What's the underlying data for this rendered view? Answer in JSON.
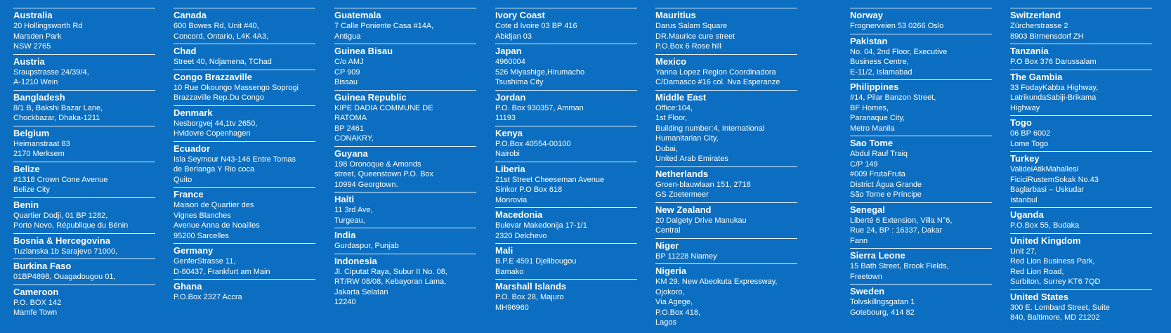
{
  "columns": [
    [
      {
        "name": "Australia",
        "lines": [
          "20 Hollingsworth Rd",
          "Marsden Park",
          "NSW 2765"
        ]
      },
      {
        "name": "Austria",
        "lines": [
          "Sraupstrasse 24/39/4,",
          "A-1210 Wein"
        ]
      },
      {
        "name": "Bangladesh",
        "lines": [
          "8/1 B, Bakshi Bazar Lane,",
          "Chockbazar, Dhaka-1211"
        ]
      },
      {
        "name": "Belgium",
        "lines": [
          "Heimanstraat 83",
          "2170 Merksem"
        ]
      },
      {
        "name": "Belize",
        "lines": [
          "#1318 Crown Cone Avenue",
          "Belize City"
        ]
      },
      {
        "name": "Benin",
        "lines": [
          "Quartier Dodji, 01 BP 1282,",
          "Porto Novo, République du Bénin"
        ]
      },
      {
        "name": "Bosnia & Hercegovina",
        "lines": [
          "Tuzlanska 1b Sarajevo 71000,"
        ]
      },
      {
        "name": "Burkina Faso",
        "lines": [
          "01BP4898, Ouagadougou 01,"
        ]
      },
      {
        "name": "Cameroon",
        "lines": [
          "P.O. BOX 142",
          "Mamfe Town"
        ]
      }
    ],
    [
      {
        "name": "Canada",
        "lines": [
          "600 Bowes Rd, Unit #40,",
          "Concord, Ontario, L4K 4A3,"
        ]
      },
      {
        "name": "Chad",
        "lines": [
          "Street 40, Ndjamena, TChad"
        ]
      },
      {
        "name": "Congo Brazzaville",
        "lines": [
          "10 Rue Okoungo Massengo Soprogi",
          "Brazzaville Rep.Du Congo"
        ]
      },
      {
        "name": "Denmark",
        "lines": [
          "Nesborgvej 44,1tv 2650,",
          "Hvidovre Copenhagen"
        ]
      },
      {
        "name": "Ecuador",
        "lines": [
          "Isla Seymour N43-146 Entre Tomas",
          "de Berlanga Y Rio coca",
          "Quito"
        ]
      },
      {
        "name": "France",
        "lines": [
          "Maison de Quartier des",
          "Vignes Blanches",
          "Avenue Anna de Noailles",
          "95200 Sarcelles"
        ]
      },
      {
        "name": "Germany",
        "lines": [
          "GenferStrasse 11,",
          "D-60437, Frankfurt am Main"
        ]
      },
      {
        "name": "Ghana",
        "lines": [
          "P.O.Box 2327 Accra"
        ]
      }
    ],
    [
      {
        "name": "Guatemala",
        "lines": [
          "7 Calle Poniente Casa #14A,",
          "Antigua"
        ]
      },
      {
        "name": "Guinea Bisau",
        "lines": [
          "C/o AMJ",
          "CP 909",
          "Bissau"
        ]
      },
      {
        "name": "Guinea Republic",
        "lines": [
          "KIPE DADIA COMMUNE DE",
          "RATOMA",
          "BP 2461",
          "CONAKRY,"
        ]
      },
      {
        "name": "Guyana",
        "lines": [
          "198 Oronoque & Amonds",
          "street, Queenstown P.O. Box",
          "10994 Georgtown."
        ]
      },
      {
        "name": "Haiti",
        "lines": [
          "11 3rd Ave,",
          "Turgeau,"
        ]
      },
      {
        "name": "India",
        "lines": [
          "Gurdaspur, Punjab"
        ]
      },
      {
        "name": "Indonesia",
        "lines": [
          "Jl. Ciputat Raya, Subur II No. 08,",
          "RT/RW 08/08, Kebayoran Lama,",
          "Jakarta Selatan",
          "12240"
        ]
      }
    ],
    [
      {
        "name": "Ivory Coast",
        "lines": [
          "Cote d Ivoire 03 BP 416",
          "Abidjan 03"
        ]
      },
      {
        "name": "Japan",
        "lines": [
          "4960004",
          "526 Miyashige,Hirumacho",
          "Tsushima City"
        ]
      },
      {
        "name": "Jordan",
        "lines": [
          "P.O. Box 930357, Amman",
          "11193"
        ]
      },
      {
        "name": "Kenya",
        "lines": [
          "P.O.Box 40554-00100",
          "Nairobi"
        ]
      },
      {
        "name": "Liberia",
        "lines": [
          "21st Street Cheeseman Avenue",
          "Sinkor P.O Box 618",
          "Monrovia"
        ]
      },
      {
        "name": "Macedonia",
        "lines": [
          "Bulevar Makedonija 17-1/1",
          "2320 Delchevo"
        ]
      },
      {
        "name": "Mali",
        "lines": [
          "B.P.E 4591 Djelibougou",
          "Bamako"
        ]
      },
      {
        "name": "Marshall Islands",
        "lines": [
          "P.O. Box 28, Majuro",
          "MH96960"
        ]
      }
    ],
    [
      {
        "name": "Mauritius",
        "lines": [
          "Darus Salam Square",
          "DR.Maurice cure street",
          "P.O.Box 6 Rose hill"
        ]
      },
      {
        "name": "Mexico",
        "lines": [
          "Yanna Lopez Region Coordinadora",
          "C/Damasco #16 col. Nva Esperanze"
        ]
      },
      {
        "name": "Middle East",
        "lines": [
          "Office:104,",
          "1st Floor,",
          "Building number:4, International",
          "Humanitarian City,",
          "Dubai,",
          "United Arab Emirates"
        ]
      },
      {
        "name": "Netherlands",
        "lines": [
          "Groen-blauwlaan 151, 2718",
          "GS Zoetermeer"
        ]
      },
      {
        "name": "New Zealand",
        "lines": [
          "20 Dalgety Drive Manukau",
          "Central"
        ]
      },
      {
        "name": "Niger",
        "lines": [
          "BP 11228 Niamey"
        ]
      },
      {
        "name": "Nigeria",
        "lines": [
          "KM 29, New Abeokuta Expressway,",
          "Ojokoro,",
          "Via Agege,",
          "P.O.Box 418,",
          "Lagos"
        ]
      }
    ],
    [
      {
        "name": "Norway",
        "lines": [
          "Frognerveien 53 0266 Oslo"
        ]
      },
      {
        "name": "Pakistan",
        "lines": [
          "No. 04, 2nd Floor, Executive",
          "Business Centre,",
          "E-11/2, Islamabad"
        ]
      },
      {
        "name": "Philippines",
        "lines": [
          "#14, Pilar Banzon Street,",
          "BF Homes,",
          "Paranaque City,",
          "Metro Manila"
        ]
      },
      {
        "name": "Sao Tome",
        "lines": [
          "Abdul Rauf Traiq",
          "C/P 149",
          "#009 FrutaFruta",
          "District Água Grande",
          "São Tome e Príncipe"
        ]
      },
      {
        "name": "Senegal",
        "lines": [
          "Liberté 6 Extension, Villa N°6,",
          "Rue 24, BP : 16337, Dakar",
          "Fann"
        ]
      },
      {
        "name": "Sierra Leone",
        "lines": [
          "15 Bath Street, Brook Fields,",
          "Freetown"
        ]
      },
      {
        "name": "Sweden",
        "lines": [
          "Tolvskillngsgatan 1",
          "Gotebourg, 414 82"
        ]
      }
    ],
    [
      {
        "name": "Switzerland",
        "lines": [
          "Zürcherstrasse 2",
          "8903 Birmensdorf ZH"
        ]
      },
      {
        "name": "Tanzania",
        "lines": [
          "P.O Box 376 Darussalam"
        ]
      },
      {
        "name": "The Gambia",
        "lines": [
          "33 FodayKabba Highway,",
          "LatrikundaSabiji-Brikama",
          "Highway"
        ]
      },
      {
        "name": "Togo",
        "lines": [
          "06 BP 6002",
          "Lome Togo"
        ]
      },
      {
        "name": "Turkey",
        "lines": [
          "ValideiAtikMahallesi",
          "FiciciRustemSokak No.43",
          "Baglarbasi – Uskudar",
          "Istanbul"
        ]
      },
      {
        "name": "Uganda",
        "lines": [
          "P.O.Box 55, Budaka"
        ]
      },
      {
        "name": "United Kingdom",
        "lines": [
          "Unit 27,",
          "Red Lion Business Park,",
          "Red Lion Road,",
          "Surbiton, Surrey KT6 7QD"
        ]
      },
      {
        "name": "United States",
        "lines": [
          "300 E. Lombard Street, Suite",
          "840, Baltimore, MD 21202"
        ]
      }
    ]
  ]
}
